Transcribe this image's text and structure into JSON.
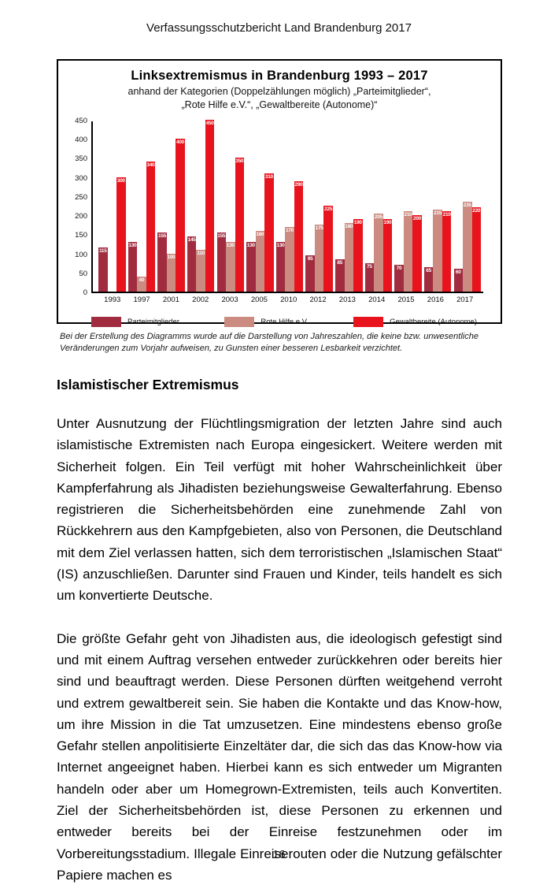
{
  "header": {
    "title": "Verfassungsschutzbericht Land Brandenburg 2017"
  },
  "chart": {
    "title": "Linksextremismus in Brandenburg 1993 – 2017",
    "subtitle_line1": "anhand der Kategorien (Doppelzählungen möglich) „Parteimitglieder“,",
    "subtitle_line2": "„Rote Hilfe e.V.“, „Gewaltbereite (Autonome)“"
  },
  "chart_data": {
    "type": "bar",
    "title": "Linksextremismus in Brandenburg 1993 – 2017",
    "subtitle": "anhand der Kategorien (Doppelzählungen möglich) „Parteimitglieder“, „Rote Hilfe e.V.“, „Gewaltbereite (Autonome)“",
    "categories": [
      "1993",
      "1997",
      "2001",
      "2002",
      "2003",
      "2005",
      "2010",
      "2012",
      "2013",
      "2014",
      "2015",
      "2016",
      "2017"
    ],
    "series": [
      {
        "name": "Parteimitglieder",
        "color": "#a12c3f",
        "values": [
          115,
          130,
          155,
          145,
          155,
          130,
          130,
          95,
          85,
          75,
          70,
          65,
          60
        ]
      },
      {
        "name": "Rote Hilfe e.V.",
        "color": "#cb8b80",
        "values": [
          null,
          40,
          100,
          110,
          130,
          160,
          170,
          175,
          180,
          205,
          210,
          215,
          235
        ]
      },
      {
        "name": "Gewaltbereite (Autonome)",
        "color": "#e8131c",
        "values": [
          300,
          340,
          400,
          450,
          350,
          310,
          290,
          225,
          190,
          190,
          200,
          210,
          220
        ]
      }
    ],
    "xlabel": "",
    "ylabel": "",
    "ylim": [
      0,
      450
    ],
    "ytick_step": 50,
    "grid": false,
    "value_labels": true,
    "legend_position": "bottom"
  },
  "chart_note": "Bei der Erstellung des Diagramms wurde auf die Darstellung von Jahreszahlen, die keine bzw. unwesentliche\nVeränderungen zum Vorjahr aufweisen, zu Gunsten einer besseren Lesbarkeit verzichtet.",
  "section": {
    "heading": "Islamistischer Extremismus",
    "paragraph1": "Unter Ausnutzung der Flüchtlingsmigration der letzten Jahre sind auch islamistische Extremisten nach Europa eingesickert. Weitere werden mit Sicherheit folgen. Ein Teil verfügt mit hoher Wahrscheinlichkeit über Kampferfahrung als Jihadisten beziehungsweise Gewalterfahrung. Ebenso registrieren die Sicherheitsbehörden eine zunehmende Zahl von Rückkehrern aus den Kampfgebieten, also von Personen, die Deutschland mit dem Ziel verlassen hatten, sich dem terroristischen „Islamischen Staat“ (IS) anzuschließen. Darunter sind Frauen und Kinder, teils handelt es sich um konvertierte Deutsche.",
    "paragraph2": "Die größte Gefahr geht von Jihadisten aus, die ideologisch gefestigt sind und mit einem Auftrag versehen entweder zurückkehren oder bereits hier sind und beauftragt werden. Diese Personen dürften weitgehend verroht und extrem gewaltbereit sein. Sie haben die Kontakte und das Know-how, um ihre Mission in die Tat umzusetzen. Eine mindestens ebenso große Gefahr stellen anpolitisierte Einzeltäter dar, die sich das das Know-how via Internet angeeignet haben. Hierbei kann es sich entweder um Migranten handeln oder aber um Homegrown-Extremisten, teils auch Konvertiten. Ziel der Sicherheitsbehörden ist, diese Personen zu erkennen und entweder bereits bei der Einreise festzunehmen oder im Vorbereitungsstadium. Illegale Einreiserouten oder die Nutzung gefälschter Papiere machen es"
  },
  "footer": {
    "page_number": "16"
  }
}
